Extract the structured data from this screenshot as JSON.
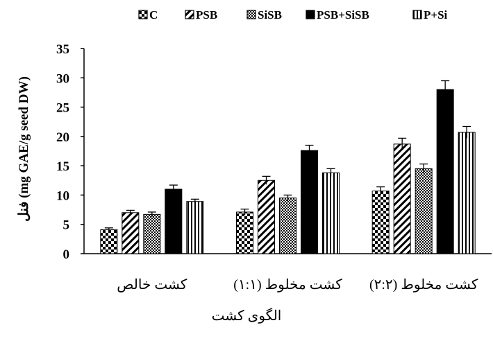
{
  "chart_data": {
    "type": "bar",
    "categories": [
      "کشت خالص",
      "کشت مخلوط (۱:۱)",
      "کشت مخلوط (۲:۲)"
    ],
    "series": [
      {
        "name": "C",
        "values": [
          4.1,
          7.1,
          10.7
        ],
        "errors": [
          0.3,
          0.5,
          0.7
        ],
        "pattern": "checker"
      },
      {
        "name": "PSB",
        "values": [
          7.0,
          12.5,
          18.7
        ],
        "errors": [
          0.4,
          0.7,
          1.0
        ],
        "pattern": "diagonal"
      },
      {
        "name": "SiSB",
        "values": [
          6.7,
          9.5,
          14.5
        ],
        "errors": [
          0.4,
          0.5,
          0.8
        ],
        "pattern": "dots"
      },
      {
        "name": "PSB+SiSB",
        "values": [
          11.0,
          17.6,
          28.0
        ],
        "errors": [
          0.7,
          0.9,
          1.5
        ],
        "pattern": "solid"
      },
      {
        "name": "P+Si",
        "values": [
          8.9,
          13.8,
          20.7
        ],
        "errors": [
          0.4,
          0.7,
          1.0
        ],
        "pattern": "vertical"
      }
    ],
    "xlabel": "الگوی کشت",
    "ylabel": "فنل (mg GAE/g seed DW)",
    "ylim": [
      0,
      35
    ],
    "yticks": [
      "0",
      "5",
      "10",
      "15",
      "20",
      "25",
      "30",
      "35"
    ],
    "grid": false,
    "legend_position": "top"
  },
  "colors": {
    "ink": "#000000",
    "background": "#ffffff"
  }
}
